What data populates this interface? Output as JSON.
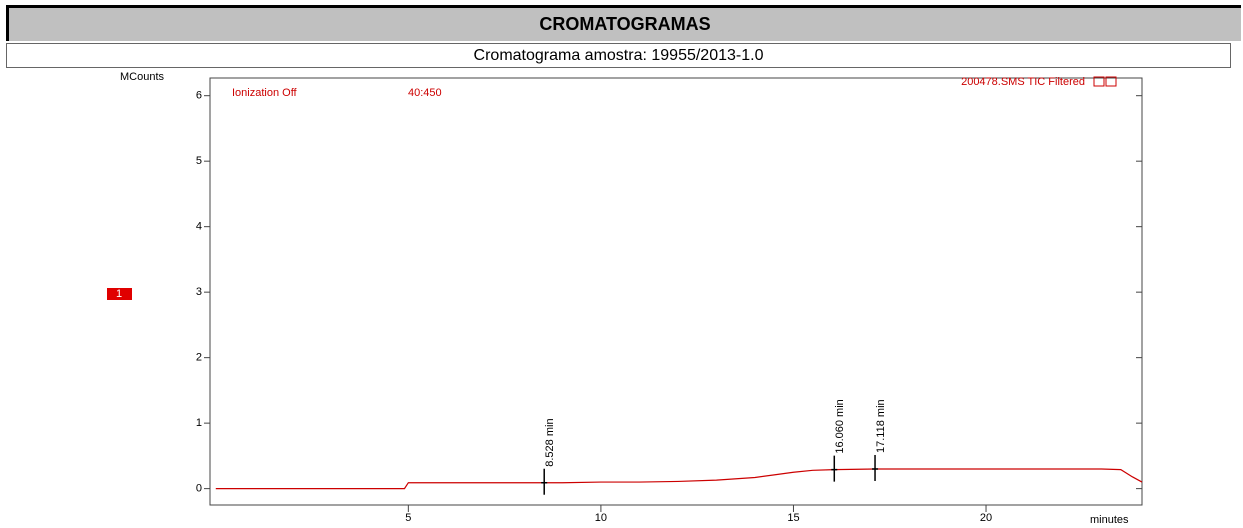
{
  "header": {
    "title": "CROMATOGRAMAS",
    "subtitle": "Cromatograma amostra: 19955/2013-1.0"
  },
  "chart_data": {
    "type": "line",
    "y_label": "MCounts",
    "x_label": "minutes",
    "notes": [
      "Ionization Off",
      "40:450"
    ],
    "trace_marker": "1",
    "x": [
      0,
      4.9,
      5.0,
      6,
      7,
      8,
      8.528,
      9,
      10,
      11,
      12,
      13,
      14,
      14.5,
      15,
      15.5,
      16.06,
      17.118,
      18,
      19,
      20,
      21,
      22,
      23,
      23.5,
      23.8,
      24.05
    ],
    "series": [
      {
        "name": "200478.SMS TIC Filtered",
        "color": "#cc0000",
        "values": [
          0,
          0,
          0.09,
          0.09,
          0.09,
          0.09,
          0.09,
          0.09,
          0.1,
          0.1,
          0.11,
          0.13,
          0.17,
          0.21,
          0.25,
          0.28,
          0.29,
          0.3,
          0.3,
          0.3,
          0.3,
          0.3,
          0.3,
          0.3,
          0.29,
          0.18,
          0.1
        ]
      }
    ],
    "peaks": [
      {
        "value": 8.528,
        "label": "8.528 min"
      },
      {
        "value": 16.06,
        "label": "16.060 min"
      },
      {
        "value": 17.118,
        "label": "17.118 min"
      }
    ],
    "xlim": [
      -0.15,
      24.05
    ],
    "ylim": [
      -0.25,
      6.27
    ],
    "xticks": [
      5,
      10,
      15,
      20
    ],
    "yticks": [
      0,
      1,
      2,
      3,
      4,
      5,
      6
    ]
  }
}
